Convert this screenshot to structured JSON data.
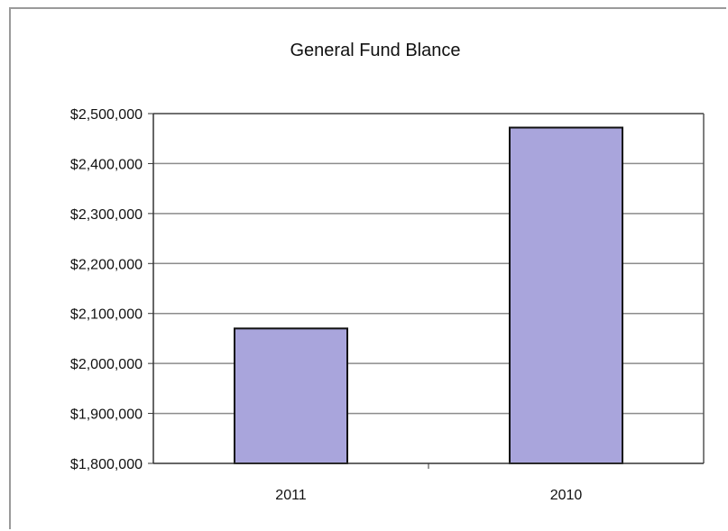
{
  "chart_data": {
    "type": "bar",
    "title": "General Fund Blance",
    "xlabel": "",
    "ylabel": "",
    "categories": [
      "2011",
      "2010"
    ],
    "values": [
      2070000,
      2472000
    ],
    "ylim": [
      1800000,
      2500000
    ],
    "ytick_values": [
      1800000,
      1900000,
      2000000,
      2100000,
      2200000,
      2300000,
      2400000,
      2500000
    ],
    "ytick_labels": [
      "$1,800,000",
      "$1,900,000",
      "$2,000,000",
      "$2,100,000",
      "$2,200,000",
      "$2,300,000",
      "$2,400,000",
      "$2,500,000"
    ],
    "grid": true,
    "legend": "none",
    "bar_color": "#a9a5dc",
    "bar_edge_color": "#111111"
  }
}
